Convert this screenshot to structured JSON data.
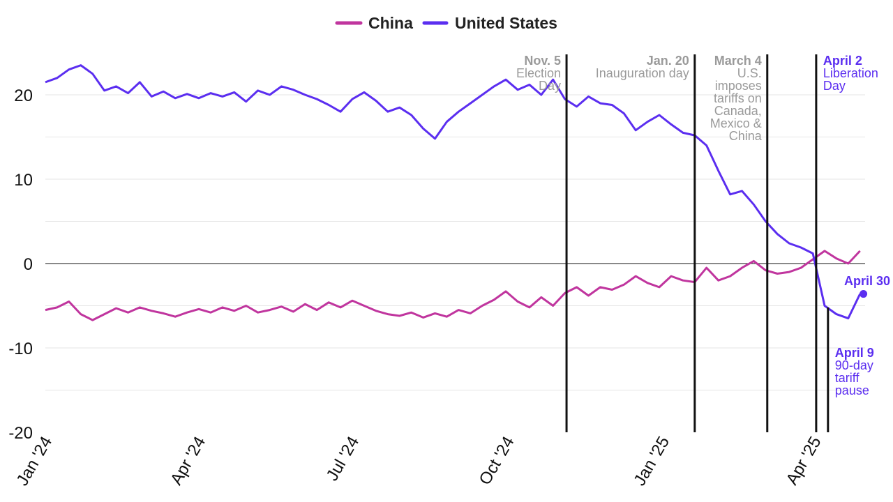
{
  "chart_data": {
    "type": "line",
    "title": "",
    "xlabel": "",
    "ylabel": "",
    "ylim": [
      -20,
      25
    ],
    "y_ticks": [
      "20",
      "10",
      "0",
      "-10",
      "-20"
    ],
    "y_tick_values": [
      20,
      10,
      0,
      -10,
      -20
    ],
    "x_ticks": [
      "Jan '24",
      "Apr '24",
      "Jul '24",
      "Oct '24",
      "Jan '25",
      "Apr '25"
    ],
    "x_tick_dates": [
      "2024-01-01",
      "2024-04-01",
      "2024-07-01",
      "2024-10-01",
      "2025-01-01",
      "2025-04-01"
    ],
    "x_range": [
      "2024-01-01",
      "2025-05-01"
    ],
    "grid": true,
    "legend_position": "top-center",
    "series": [
      {
        "name": "China",
        "color": "#c0359e",
        "points": [
          [
            "2024-01-01",
            -5.5
          ],
          [
            "2024-01-08",
            -5.2
          ],
          [
            "2024-01-15",
            -4.5
          ],
          [
            "2024-01-22",
            -6.0
          ],
          [
            "2024-01-29",
            -6.7
          ],
          [
            "2024-02-05",
            -6.0
          ],
          [
            "2024-02-12",
            -5.3
          ],
          [
            "2024-02-19",
            -5.8
          ],
          [
            "2024-02-26",
            -5.2
          ],
          [
            "2024-03-04",
            -5.6
          ],
          [
            "2024-03-11",
            -5.9
          ],
          [
            "2024-03-18",
            -6.3
          ],
          [
            "2024-03-25",
            -5.8
          ],
          [
            "2024-04-01",
            -5.4
          ],
          [
            "2024-04-08",
            -5.8
          ],
          [
            "2024-04-15",
            -5.2
          ],
          [
            "2024-04-22",
            -5.6
          ],
          [
            "2024-04-29",
            -5.0
          ],
          [
            "2024-05-06",
            -5.8
          ],
          [
            "2024-05-13",
            -5.5
          ],
          [
            "2024-05-20",
            -5.1
          ],
          [
            "2024-05-27",
            -5.7
          ],
          [
            "2024-06-03",
            -4.8
          ],
          [
            "2024-06-10",
            -5.5
          ],
          [
            "2024-06-17",
            -4.6
          ],
          [
            "2024-06-24",
            -5.2
          ],
          [
            "2024-07-01",
            -4.4
          ],
          [
            "2024-07-08",
            -5.0
          ],
          [
            "2024-07-15",
            -5.6
          ],
          [
            "2024-07-22",
            -6.0
          ],
          [
            "2024-07-29",
            -6.2
          ],
          [
            "2024-08-05",
            -5.8
          ],
          [
            "2024-08-12",
            -6.4
          ],
          [
            "2024-08-19",
            -5.9
          ],
          [
            "2024-08-26",
            -6.3
          ],
          [
            "2024-09-02",
            -5.5
          ],
          [
            "2024-09-09",
            -5.9
          ],
          [
            "2024-09-16",
            -5.0
          ],
          [
            "2024-09-23",
            -4.3
          ],
          [
            "2024-09-30",
            -3.3
          ],
          [
            "2024-10-07",
            -4.5
          ],
          [
            "2024-10-14",
            -5.2
          ],
          [
            "2024-10-21",
            -4.0
          ],
          [
            "2024-10-28",
            -5.0
          ],
          [
            "2024-11-04",
            -3.5
          ],
          [
            "2024-11-11",
            -2.8
          ],
          [
            "2024-11-18",
            -3.8
          ],
          [
            "2024-11-25",
            -2.8
          ],
          [
            "2024-12-02",
            -3.1
          ],
          [
            "2024-12-09",
            -2.5
          ],
          [
            "2024-12-16",
            -1.5
          ],
          [
            "2024-12-23",
            -2.3
          ],
          [
            "2024-12-30",
            -2.8
          ],
          [
            "2025-01-06",
            -1.5
          ],
          [
            "2025-01-13",
            -2.0
          ],
          [
            "2025-01-20",
            -2.2
          ],
          [
            "2025-01-27",
            -0.5
          ],
          [
            "2025-02-03",
            -2.0
          ],
          [
            "2025-02-10",
            -1.5
          ],
          [
            "2025-02-17",
            -0.5
          ],
          [
            "2025-02-24",
            0.3
          ],
          [
            "2025-03-03",
            -0.8
          ],
          [
            "2025-03-10",
            -1.2
          ],
          [
            "2025-03-17",
            -1.0
          ],
          [
            "2025-03-24",
            -0.5
          ],
          [
            "2025-03-31",
            0.5
          ],
          [
            "2025-04-07",
            1.5
          ],
          [
            "2025-04-14",
            0.6
          ],
          [
            "2025-04-21",
            0.0
          ],
          [
            "2025-04-28",
            1.5
          ]
        ]
      },
      {
        "name": "United States",
        "color": "#5b2ef0",
        "points": [
          [
            "2024-01-01",
            21.5
          ],
          [
            "2024-01-08",
            22.0
          ],
          [
            "2024-01-15",
            23.0
          ],
          [
            "2024-01-22",
            23.5
          ],
          [
            "2024-01-29",
            22.5
          ],
          [
            "2024-02-05",
            20.5
          ],
          [
            "2024-02-12",
            21.0
          ],
          [
            "2024-02-19",
            20.2
          ],
          [
            "2024-02-26",
            21.5
          ],
          [
            "2024-03-04",
            19.8
          ],
          [
            "2024-03-11",
            20.4
          ],
          [
            "2024-03-18",
            19.6
          ],
          [
            "2024-03-25",
            20.1
          ],
          [
            "2024-04-01",
            19.6
          ],
          [
            "2024-04-08",
            20.2
          ],
          [
            "2024-04-15",
            19.8
          ],
          [
            "2024-04-22",
            20.3
          ],
          [
            "2024-04-29",
            19.2
          ],
          [
            "2024-05-06",
            20.5
          ],
          [
            "2024-05-13",
            20.0
          ],
          [
            "2024-05-20",
            21.0
          ],
          [
            "2024-05-27",
            20.6
          ],
          [
            "2024-06-03",
            20.0
          ],
          [
            "2024-06-10",
            19.5
          ],
          [
            "2024-06-17",
            18.8
          ],
          [
            "2024-06-24",
            18.0
          ],
          [
            "2024-07-01",
            19.5
          ],
          [
            "2024-07-08",
            20.3
          ],
          [
            "2024-07-15",
            19.3
          ],
          [
            "2024-07-22",
            18.0
          ],
          [
            "2024-07-29",
            18.5
          ],
          [
            "2024-08-05",
            17.6
          ],
          [
            "2024-08-12",
            16.0
          ],
          [
            "2024-08-19",
            14.8
          ],
          [
            "2024-08-26",
            16.8
          ],
          [
            "2024-09-02",
            18.0
          ],
          [
            "2024-09-09",
            19.0
          ],
          [
            "2024-09-16",
            20.0
          ],
          [
            "2024-09-23",
            21.0
          ],
          [
            "2024-09-30",
            21.8
          ],
          [
            "2024-10-07",
            20.6
          ],
          [
            "2024-10-14",
            21.2
          ],
          [
            "2024-10-21",
            20.0
          ],
          [
            "2024-10-28",
            21.8
          ],
          [
            "2024-11-04",
            19.5
          ],
          [
            "2024-11-11",
            18.6
          ],
          [
            "2024-11-18",
            19.8
          ],
          [
            "2024-11-25",
            19.0
          ],
          [
            "2024-12-02",
            18.8
          ],
          [
            "2024-12-09",
            17.8
          ],
          [
            "2024-12-16",
            15.8
          ],
          [
            "2024-12-23",
            16.8
          ],
          [
            "2024-12-30",
            17.6
          ],
          [
            "2025-01-06",
            16.5
          ],
          [
            "2025-01-13",
            15.5
          ],
          [
            "2025-01-20",
            15.2
          ],
          [
            "2025-01-27",
            14.0
          ],
          [
            "2025-02-03",
            11.0
          ],
          [
            "2025-02-10",
            8.2
          ],
          [
            "2025-02-17",
            8.6
          ],
          [
            "2025-02-24",
            7.0
          ],
          [
            "2025-03-03",
            5.0
          ],
          [
            "2025-03-10",
            3.5
          ],
          [
            "2025-03-17",
            2.4
          ],
          [
            "2025-03-24",
            1.9
          ],
          [
            "2025-03-31",
            1.2
          ],
          [
            "2025-04-07",
            -5.0
          ],
          [
            "2025-04-14",
            -6.0
          ],
          [
            "2025-04-21",
            -6.5
          ],
          [
            "2025-04-28",
            -3.6
          ]
        ]
      }
    ],
    "annotations": [
      {
        "date": "2024-11-05",
        "title": "Nov. 5",
        "lines": [
          "Election",
          "Day"
        ],
        "color": "#9a9a9a",
        "anchor": "end"
      },
      {
        "date": "2025-01-20",
        "title": "Jan. 20",
        "lines": [
          "Inauguration day"
        ],
        "color": "#9a9a9a",
        "anchor": "end"
      },
      {
        "date": "2025-03-04",
        "title": "March 4",
        "lines": [
          "U.S.",
          "imposes",
          "tariffs on",
          "Canada,",
          "Mexico &",
          "China"
        ],
        "color": "#9a9a9a",
        "anchor": "end"
      },
      {
        "date": "2025-04-02",
        "title": "April 2",
        "lines": [
          "Liberation",
          "Day"
        ],
        "color": "#5b2ef0",
        "anchor": "start"
      },
      {
        "date": "2025-04-09",
        "title": "April 9",
        "lines": [
          "90-day",
          "tariff",
          "pause"
        ],
        "color": "#5b2ef0",
        "anchor": "start"
      }
    ],
    "end_label": {
      "text": "April 30",
      "series": "United States",
      "date": "2025-04-30",
      "value": -3.6,
      "color": "#5b2ef0"
    }
  }
}
